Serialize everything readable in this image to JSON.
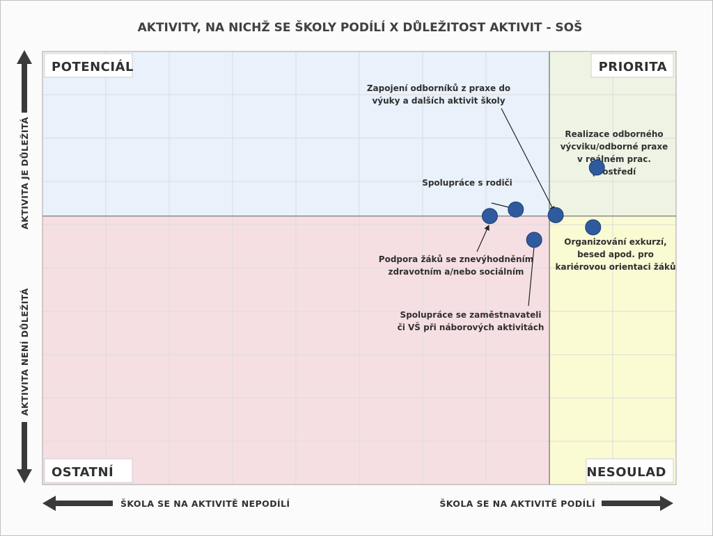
{
  "chart_data": {
    "type": "scatter",
    "title": "AKTIVITY, NA NICHŽ SE ŠKOLY PODÍLÍ X DŮLEŽITOST AKTIVIT - SOŠ",
    "xlabel_left": "ŠKOLA SE NA AKTIVITĚ NEPODÍLÍ",
    "xlabel_right": "ŠKOLA SE NA AKTIVITĚ PODÍLÍ",
    "ylabel_top": "AKTIVITA JE DŮLEŽITÁ",
    "ylabel_bottom": "AKTIVITA NENÍ DŮLEŽITÁ",
    "xlim": [
      0,
      100
    ],
    "ylim": [
      0,
      100
    ],
    "x_divider": 80,
    "y_divider": 62,
    "grid": true,
    "quadrants": {
      "top_left": "POTENCIÁL",
      "top_right": "PRIORITA",
      "bottom_left": "OSTATNÍ",
      "bottom_right": "NESOULAD"
    },
    "colors": {
      "top_left": "#e9f1fa",
      "top_right": "#eef3e3",
      "bottom_left": "#f6dfe3",
      "bottom_right": "#fafad3",
      "point": "#2f5a9e"
    },
    "points": [
      {
        "label": [
          "Realizace odborného",
          "výcviku/odborné praxe",
          "v reálném prac.",
          "prostředí"
        ],
        "x": 87.5,
        "y": 73.2
      },
      {
        "label": [
          "Zapojení odborníků z praxe do",
          "výuky a dalších aktivit školy"
        ],
        "x": 81.0,
        "y": 62.2
      },
      {
        "label": [
          "Spolupráce s rodiči"
        ],
        "x": 74.7,
        "y": 63.5
      },
      {
        "label": [
          "Podpora žáků se znevýhodněním",
          "zdravotním a/nebo sociálním"
        ],
        "x": 70.6,
        "y": 62.0
      },
      {
        "label": [
          "Spolupráce se zaměstnavateli",
          "či VŠ při náborových aktivitách"
        ],
        "x": 77.6,
        "y": 56.5
      },
      {
        "label": [
          "Organizování exkurzí,",
          "besed apod. pro",
          "kariérovou orientaci žáků"
        ],
        "x": 86.9,
        "y": 59.4
      }
    ]
  }
}
